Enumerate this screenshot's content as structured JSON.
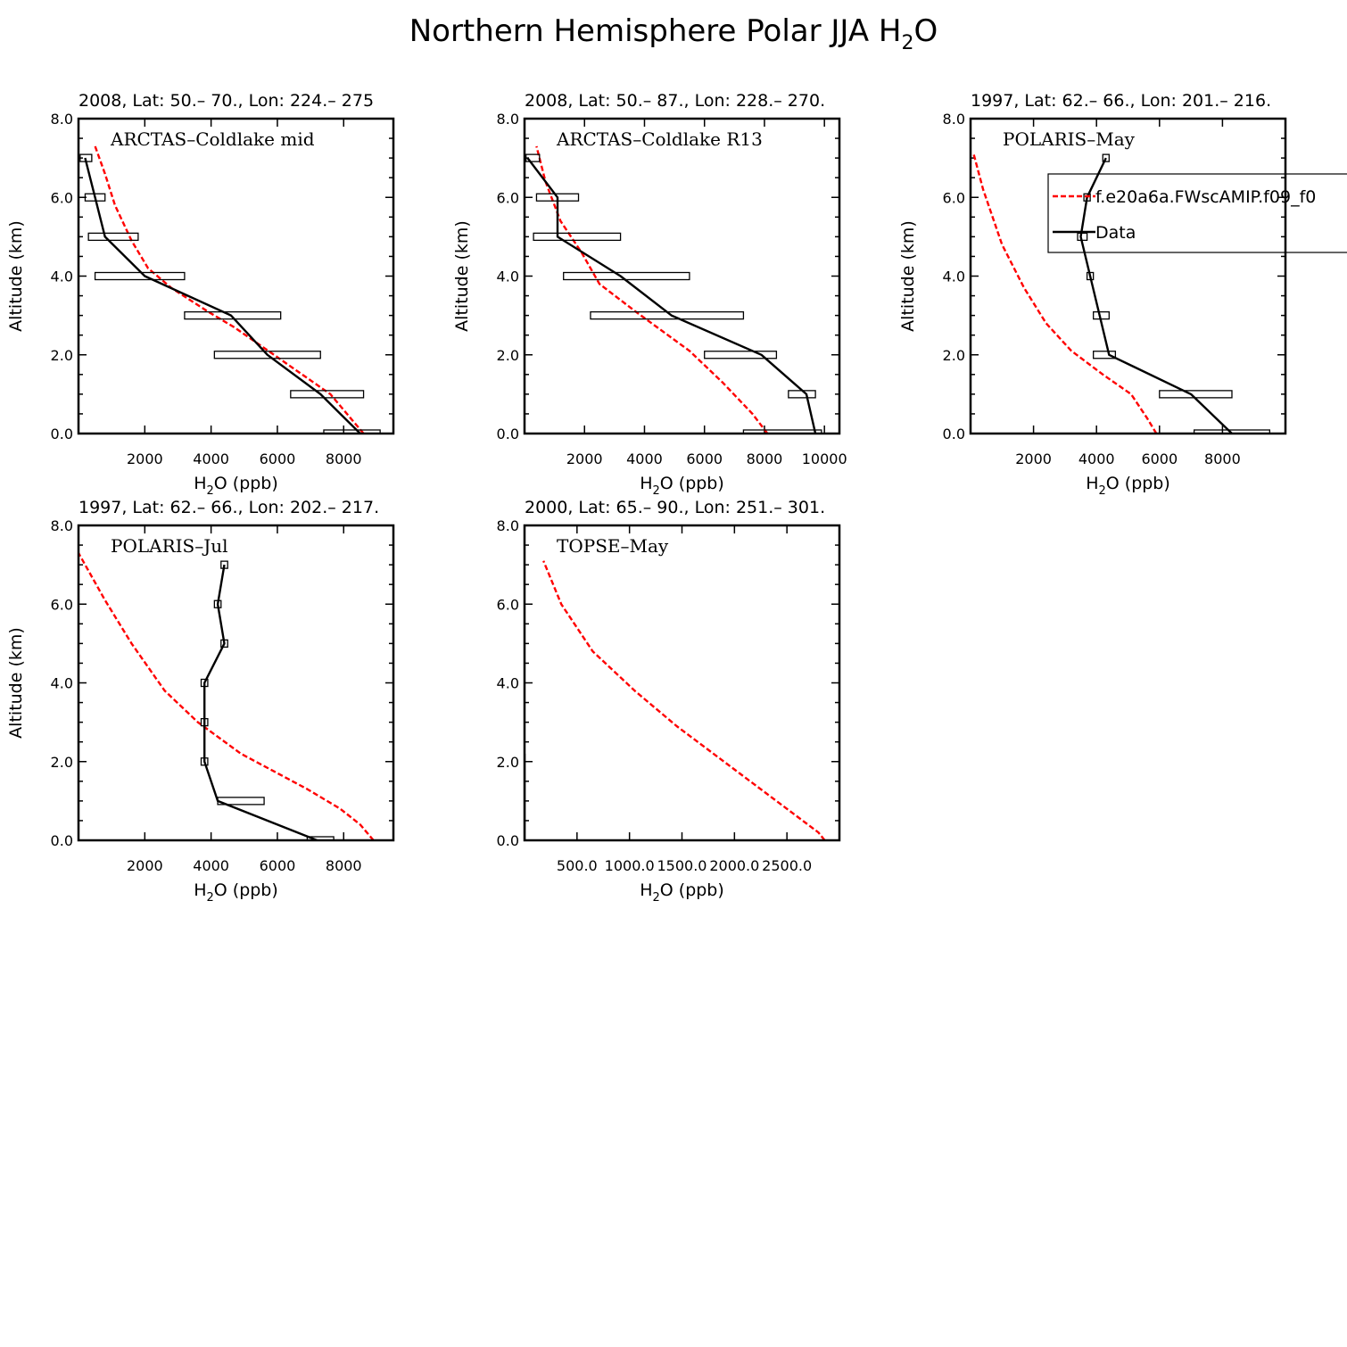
{
  "figure_title": "Northern Hemisphere Polar JJA H",
  "figure_title_sub": "2",
  "figure_title_end": "O",
  "legend": {
    "model_label": "f.e20a6a.FWscAMIP.f09_f0",
    "data_label": "Data"
  },
  "colors": {
    "model": "#ff0000",
    "data": "#000000"
  },
  "chart_data": [
    {
      "type": "line",
      "subtitle": "2008, Lat:  50.– 70., Lon: 224.– 275",
      "campaign": "ARCTAS–Coldlake mid",
      "ylabel": "Altitude (km)",
      "xlabel": "H2O (ppb)",
      "xlim": [
        0,
        9500
      ],
      "ylim": [
        0,
        8
      ],
      "xticks": [
        2000,
        4000,
        6000,
        8000
      ],
      "xtick_labels": [
        "2000",
        "4000",
        "6000",
        "8000"
      ],
      "yticks": [
        0,
        2,
        4,
        6,
        8
      ],
      "ytick_labels": [
        "0.0",
        "2.0",
        "4.0",
        "6.0",
        "8.0"
      ],
      "series": [
        {
          "name": "model",
          "style": "dashed",
          "points": [
            [
              8600,
              0
            ],
            [
              8300,
              0.3
            ],
            [
              7600,
              1.0
            ],
            [
              5900,
              2.0
            ],
            [
              4700,
              2.7
            ],
            [
              3900,
              3.1
            ],
            [
              2800,
              3.7
            ],
            [
              2100,
              4.2
            ],
            [
              1600,
              4.9
            ],
            [
              1100,
              5.8
            ],
            [
              800,
              6.6
            ],
            [
              500,
              7.3
            ]
          ]
        },
        {
          "name": "data",
          "style": "solid",
          "points": [
            [
              8500,
              0
            ],
            [
              7300,
              1.0
            ],
            [
              5700,
              2.0
            ],
            [
              4600,
              3.0
            ],
            [
              2000,
              4.0
            ],
            [
              800,
              5.0
            ],
            [
              500,
              6.0
            ],
            [
              200,
              7.0
            ]
          ],
          "ranges": [
            [
              7400,
              9100
            ],
            [
              6400,
              8600
            ],
            [
              4100,
              7300
            ],
            [
              3200,
              6100
            ],
            [
              500,
              3200
            ],
            [
              300,
              1800
            ],
            [
              200,
              800
            ],
            [
              50,
              400
            ]
          ]
        }
      ]
    },
    {
      "type": "line",
      "subtitle": "2008, Lat:  50.– 87., Lon: 228.– 270.",
      "campaign": "ARCTAS–Coldlake R13",
      "ylabel": "Altitude (km)",
      "xlabel": "H2O (ppb)",
      "xlim": [
        0,
        10500
      ],
      "ylim": [
        0,
        8
      ],
      "xticks": [
        2000,
        4000,
        6000,
        8000,
        10000
      ],
      "xtick_labels": [
        "2000",
        "4000",
        "6000",
        "8000",
        "10000"
      ],
      "yticks": [
        0,
        2,
        4,
        6,
        8
      ],
      "ytick_labels": [
        "0.0",
        "2.0",
        "4.0",
        "6.0",
        "8.0"
      ],
      "series": [
        {
          "name": "model",
          "style": "dashed",
          "points": [
            [
              8100,
              0
            ],
            [
              7600,
              0.5
            ],
            [
              6600,
              1.3
            ],
            [
              5500,
              2.1
            ],
            [
              3700,
              3.1
            ],
            [
              2500,
              3.8
            ],
            [
              1900,
              4.6
            ],
            [
              1200,
              5.4
            ],
            [
              700,
              6.4
            ],
            [
              400,
              7.3
            ]
          ]
        },
        {
          "name": "data",
          "style": "solid",
          "points": [
            [
              9700,
              0
            ],
            [
              9400,
              1.0
            ],
            [
              7900,
              2.0
            ],
            [
              4900,
              3.0
            ],
            [
              3200,
              4.0
            ],
            [
              1100,
              5.0
            ],
            [
              1100,
              6.0
            ],
            [
              100,
              7.0
            ]
          ],
          "ranges": [
            [
              7300,
              9900
            ],
            [
              8800,
              9700
            ],
            [
              6000,
              8400
            ],
            [
              2200,
              7300
            ],
            [
              1300,
              5500
            ],
            [
              300,
              3200
            ],
            [
              400,
              1800
            ],
            [
              50,
              500
            ]
          ]
        }
      ]
    },
    {
      "type": "line",
      "subtitle": "1997, Lat: 62.– 66., Lon: 201.– 216.",
      "campaign": "POLARIS–May",
      "ylabel": "Altitude (km)",
      "xlabel": "H2O (ppb)",
      "xlim": [
        0,
        10000
      ],
      "ylim": [
        0,
        8
      ],
      "xticks": [
        2000,
        4000,
        6000,
        8000
      ],
      "xtick_labels": [
        "2000",
        "4000",
        "6000",
        "8000"
      ],
      "yticks": [
        0,
        2,
        4,
        6,
        8
      ],
      "ytick_labels": [
        "0.0",
        "2.0",
        "4.0",
        "6.0",
        "8.0"
      ],
      "legend": true,
      "series": [
        {
          "name": "model",
          "style": "dashed",
          "points": [
            [
              5900,
              0
            ],
            [
              5600,
              0.4
            ],
            [
              5100,
              1.0
            ],
            [
              4200,
              1.5
            ],
            [
              3200,
              2.1
            ],
            [
              2400,
              2.8
            ],
            [
              1700,
              3.7
            ],
            [
              1000,
              4.8
            ],
            [
              700,
              5.5
            ],
            [
              400,
              6.2
            ],
            [
              100,
              7.1
            ]
          ]
        },
        {
          "name": "data",
          "style": "solid",
          "points": [
            [
              8300,
              0
            ],
            [
              7000,
              1.0
            ],
            [
              4400,
              2.0
            ],
            [
              4100,
              3.0
            ],
            [
              3800,
              4.0
            ],
            [
              3500,
              5.0
            ],
            [
              3700,
              6.0
            ],
            [
              4300,
              7.0
            ]
          ],
          "ranges": [
            [
              7100,
              9500
            ],
            [
              6000,
              8300
            ],
            [
              3900,
              4600
            ],
            [
              3900,
              4400
            ],
            [
              3700,
              3900
            ],
            [
              3400,
              3700
            ],
            [
              3600,
              3800
            ],
            [
              4200,
              4400
            ]
          ]
        }
      ]
    },
    {
      "type": "line",
      "subtitle": "1997, Lat: 62.– 66., Lon: 202.– 217.",
      "campaign": "POLARIS–Jul",
      "ylabel": "Altitude (km)",
      "xlabel": "H2O (ppb)",
      "xlim": [
        0,
        9500
      ],
      "ylim": [
        0,
        8
      ],
      "xticks": [
        2000,
        4000,
        6000,
        8000
      ],
      "xtick_labels": [
        "2000",
        "4000",
        "6000",
        "8000"
      ],
      "yticks": [
        0,
        2,
        4,
        6,
        8
      ],
      "ytick_labels": [
        "0.0",
        "2.0",
        "4.0",
        "6.0",
        "8.0"
      ],
      "series": [
        {
          "name": "model",
          "style": "dashed",
          "points": [
            [
              8900,
              0
            ],
            [
              8500,
              0.4
            ],
            [
              7900,
              0.8
            ],
            [
              6900,
              1.3
            ],
            [
              4900,
              2.2
            ],
            [
              3600,
              3.0
            ],
            [
              2600,
              3.8
            ],
            [
              1600,
              5.0
            ],
            [
              800,
              6.1
            ],
            [
              0,
              7.3
            ]
          ]
        },
        {
          "name": "data",
          "style": "solid",
          "points": [
            [
              7200,
              0
            ],
            [
              4200,
              1.0
            ],
            [
              3800,
              2.0
            ],
            [
              3800,
              3.0
            ],
            [
              3800,
              4.0
            ],
            [
              4400,
              5.0
            ],
            [
              4200,
              6.0
            ],
            [
              4400,
              7.0
            ]
          ],
          "ranges": [
            [
              6900,
              7700
            ],
            [
              4200,
              5600
            ],
            [
              3700,
              3900
            ],
            [
              3700,
              3900
            ],
            [
              3700,
              3900
            ],
            [
              4300,
              4500
            ],
            [
              4100,
              4300
            ],
            [
              4300,
              4500
            ]
          ]
        }
      ]
    },
    {
      "type": "line",
      "subtitle": "2000, Lat: 65.– 90., Lon: 251.– 301.",
      "campaign": "TOPSE–May",
      "ylabel": "",
      "xlabel": "H2O (ppb)",
      "xlim": [
        0,
        3000
      ],
      "ylim": [
        0,
        8
      ],
      "xticks": [
        500,
        1000,
        1500,
        2000,
        2500
      ],
      "xtick_labels": [
        "500.0",
        "1000.0",
        "1500.0",
        "2000.0",
        "2500.0"
      ],
      "yticks": [
        0,
        2,
        4,
        6,
        8
      ],
      "ytick_labels": [
        "0.0",
        "2.0",
        "4.0",
        "6.0",
        "8.0"
      ],
      "series": [
        {
          "name": "model",
          "style": "dashed",
          "points": [
            [
              2860,
              0
            ],
            [
              2800,
              0.2
            ],
            [
              2550,
              0.7
            ],
            [
              2050,
              1.7
            ],
            [
              1450,
              2.9
            ],
            [
              1050,
              3.8
            ],
            [
              650,
              4.8
            ],
            [
              350,
              6.0
            ],
            [
              180,
              7.1
            ]
          ]
        },
        {
          "name": "data",
          "style": "solid",
          "points": [
            [
              0,
              0
            ],
            [
              0,
              2.2
            ]
          ],
          "ranges": []
        }
      ]
    }
  ]
}
